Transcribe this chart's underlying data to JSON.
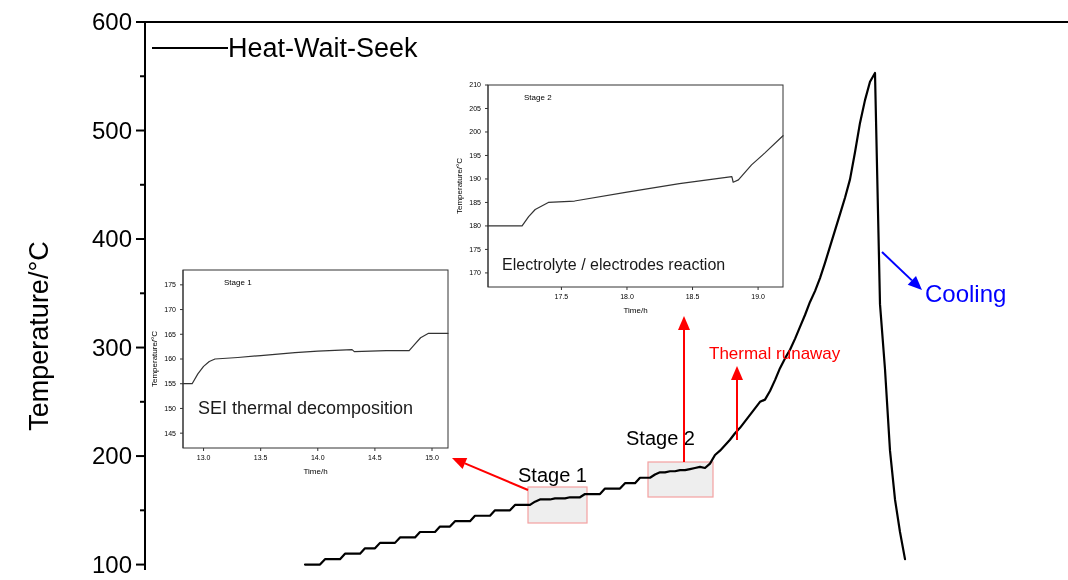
{
  "chart_data": [
    {
      "type": "line",
      "ylabel": "Temperature/°C",
      "legend": "top left",
      "tick_labels": "y",
      "grid": false,
      "categories": [
        null,
        null,
        null,
        null,
        null,
        null,
        null,
        null,
        null,
        null,
        null,
        null,
        null,
        null,
        null,
        null,
        null,
        null,
        null,
        null,
        null,
        null,
        null,
        null,
        null,
        null,
        null,
        null,
        null,
        null,
        null,
        null,
        null,
        null,
        null,
        null,
        null,
        null,
        null,
        null,
        null,
        null,
        null,
        null,
        null,
        null,
        null,
        null,
        null,
        null,
        null,
        null,
        null,
        null,
        null,
        null,
        null,
        null,
        null,
        null,
        null,
        null,
        null,
        null,
        null,
        null,
        null,
        null,
        null,
        null,
        null,
        null,
        null,
        null,
        null,
        null,
        null,
        null,
        null,
        null,
        null,
        null,
        null,
        null,
        null,
        null,
        null,
        null,
        null,
        null,
        null,
        null,
        null,
        null,
        null,
        null,
        null,
        null,
        null,
        null,
        null,
        null,
        null,
        null,
        null,
        null,
        null,
        null,
        null,
        null,
        null,
        null,
        null,
        null,
        null,
        null,
        null,
        null,
        null,
        null,
        null,
        null,
        null,
        null,
        null,
        null,
        null,
        null,
        null,
        null,
        null,
        null,
        null,
        null,
        null,
        null,
        null,
        null,
        null,
        null,
        null,
        null,
        null,
        null,
        null,
        null,
        null,
        null,
        null,
        null,
        null,
        null,
        null,
        null,
        null,
        null,
        null,
        null,
        null,
        null,
        null,
        null,
        null,
        null,
        null,
        null,
        null,
        null,
        null,
        null,
        null,
        null,
        null,
        null,
        null,
        null,
        null,
        null,
        null,
        null,
        null,
        null,
        null,
        null
      ],
      "series": [
        {
          "name": "Heat-Wait-Seek",
          "color": "#000000",
          "values": [
            null,
            null,
            null,
            null,
            null,
            null,
            null,
            null,
            null,
            null,
            null,
            null,
            null,
            null,
            null,
            null,
            null,
            null,
            null,
            null,
            null,
            null,
            null,
            null,
            null,
            null,
            null,
            null,
            null,
            null,
            null,
            null,
            100,
            100,
            100,
            100,
            105,
            105,
            105,
            105,
            110,
            110,
            110,
            110,
            115,
            115,
            115,
            120,
            120,
            120,
            120,
            125,
            125,
            125,
            125,
            130,
            130,
            130,
            130,
            135,
            135,
            135,
            140,
            140,
            140,
            140,
            145,
            145,
            145,
            145,
            150,
            150,
            150,
            150,
            155,
            155,
            155,
            155,
            158,
            160,
            160,
            160,
            161,
            161,
            161,
            162,
            162,
            162,
            165,
            165,
            165,
            165,
            170,
            170,
            170,
            170,
            175,
            175,
            175,
            180,
            180,
            180,
            183,
            185,
            185,
            186,
            186,
            187,
            187,
            188,
            189,
            190,
            189,
            193,
            201,
            205,
            210,
            215,
            221,
            226,
            232,
            238,
            244,
            250,
            252,
            260,
            270,
            281,
            290,
            298,
            308,
            319,
            330,
            342,
            352,
            364,
            378,
            393,
            408,
            423,
            438,
            455,
            480,
            507,
            528,
            545,
            553,
            340,
            280,
            205,
            160,
            130,
            105,
            null,
            null,
            null,
            null,
            null,
            null,
            null,
            null,
            null,
            null,
            null,
            null,
            null,
            null,
            null,
            null,
            null,
            null,
            null,
            null,
            null,
            null,
            null,
            null,
            null,
            null,
            null,
            null,
            null,
            null,
            null
          ]
        }
      ],
      "ylim": [
        95,
        600
      ],
      "yticks": [
        100,
        {
          "value": 150,
          "label": null
        },
        200,
        {
          "value": 250,
          "label": null
        },
        300,
        {
          "value": 350,
          "label": null
        },
        400,
        {
          "value": 450,
          "label": null
        },
        500,
        {
          "value": 550,
          "label": null
        },
        600
      ],
      "annotations": [
        "Stage 1",
        "Stage 2",
        "Thermal runaway",
        "Cooling"
      ]
    },
    {
      "type": "line",
      "title": "Stage 1",
      "xlabel": "Time/h",
      "ylabel": "Temperature/°C",
      "grid": false,
      "series": [
        {
          "color": "#333333",
          "x": [
            12.82,
            12.9,
            12.95,
            13.0,
            13.05,
            13.1,
            13.3,
            13.5,
            13.8,
            14.0,
            14.3,
            14.32,
            14.6,
            14.8,
            14.85,
            14.9,
            14.97,
            15.14
          ],
          "values": [
            155,
            155,
            157,
            158.5,
            159.5,
            160,
            160.3,
            160.7,
            161.3,
            161.6,
            161.9,
            161.5,
            161.7,
            161.7,
            163,
            164.3,
            165.2,
            165.2
          ]
        }
      ],
      "xlim": [
        12.82,
        15.14
      ],
      "xticks": [
        {
          "value": 13,
          "label": "13.0"
        },
        13.5,
        {
          "value": 14,
          "label": "14.0"
        },
        14.5,
        {
          "value": 15,
          "label": "15.0"
        }
      ],
      "ylim": [
        142,
        178
      ],
      "yticks": [
        145,
        150,
        155,
        160,
        165,
        170,
        175
      ],
      "annotations": [
        "SEI thermal decomposition"
      ]
    },
    {
      "type": "line",
      "title": "Stage 2",
      "xlabel": "Time/h",
      "ylabel": "Temperature/°C",
      "grid": false,
      "series": [
        {
          "color": "#333333",
          "x": [
            16.94,
            17.2,
            17.25,
            17.3,
            17.4,
            17.6,
            18.0,
            18.4,
            18.8,
            18.81,
            18.85,
            18.95,
            19.05,
            19.19
          ],
          "values": [
            180,
            180,
            182,
            183.5,
            185,
            185.3,
            187.2,
            189,
            190.5,
            189.3,
            189.8,
            193,
            195.5,
            199.2
          ]
        }
      ],
      "xlim": [
        16.94,
        19.19
      ],
      "xticks": [
        17.5,
        {
          "value": 18,
          "label": "18.0"
        },
        18.5,
        {
          "value": 19,
          "label": "19.0"
        }
      ],
      "ylim": [
        167,
        210
      ],
      "yticks": [
        170,
        175,
        180,
        185,
        190,
        195,
        200,
        205,
        210
      ],
      "annotations": [
        "Electrolyte / electrodes reaction"
      ]
    }
  ]
}
